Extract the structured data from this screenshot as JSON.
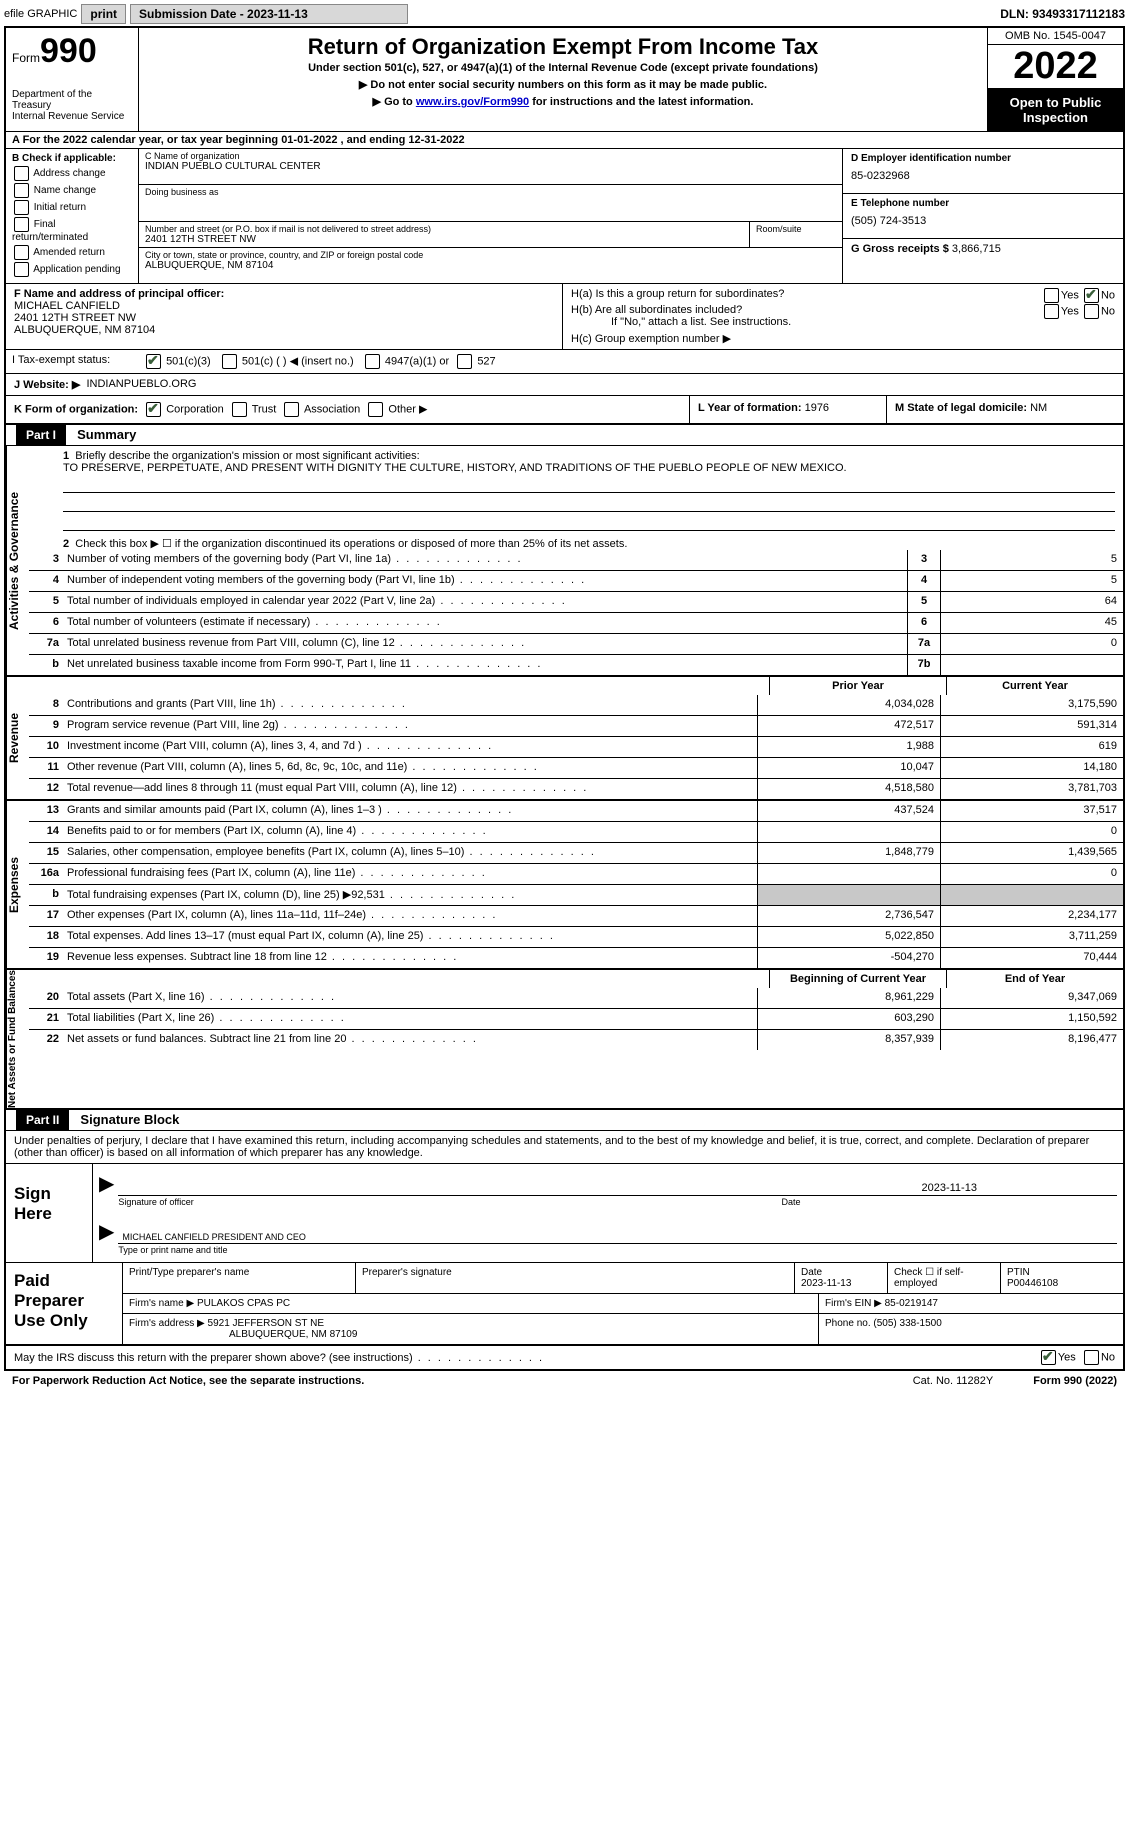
{
  "topbar": {
    "efile": "efile GRAPHIC",
    "print": "print",
    "submission": "Submission Date - 2023-11-13",
    "dln": "DLN: 93493317112183"
  },
  "header": {
    "form_label": "Form",
    "form_num": "990",
    "dept": "Department of the Treasury",
    "irs": "Internal Revenue Service",
    "title": "Return of Organization Exempt From Income Tax",
    "sub1": "Under section 501(c), 527, or 4947(a)(1) of the Internal Revenue Code (except private foundations)",
    "sub2": "▶ Do not enter social security numbers on this form as it may be made public.",
    "sub3_pre": "▶ Go to ",
    "sub3_link": "www.irs.gov/Form990",
    "sub3_post": " for instructions and the latest information.",
    "omb": "OMB No. 1545-0047",
    "year": "2022",
    "open": "Open to Public Inspection"
  },
  "row_a": "A For the 2022 calendar year, or tax year beginning 01-01-2022    , and ending 12-31-2022",
  "col_b": {
    "title": "B Check if applicable:",
    "items": [
      "Address change",
      "Name change",
      "Initial return",
      "Final return/terminated",
      "Amended return",
      "Application pending"
    ]
  },
  "col_c": {
    "name_lbl": "C Name of organization",
    "name": "INDIAN PUEBLO CULTURAL CENTER",
    "dba_lbl": "Doing business as",
    "dba": "",
    "street_lbl": "Number and street (or P.O. box if mail is not delivered to street address)",
    "street": "2401 12TH STREET NW",
    "room_lbl": "Room/suite",
    "city_lbl": "City or town, state or province, country, and ZIP or foreign postal code",
    "city": "ALBUQUERQUE, NM  87104"
  },
  "col_d": {
    "ein_lbl": "D Employer identification number",
    "ein": "85-0232968",
    "tel_lbl": "E Telephone number",
    "tel": "(505) 724-3513",
    "gross_lbl": "G Gross receipts $",
    "gross": "3,866,715"
  },
  "section_f": {
    "lbl": "F Name and address of principal officer:",
    "name": "MICHAEL CANFIELD",
    "street": "2401 12TH STREET NW",
    "city": "ALBUQUERQUE, NM  87104"
  },
  "section_h": {
    "ha": "H(a)  Is this a group return for subordinates?",
    "hb": "H(b)  Are all subordinates included?",
    "hb_note": "If \"No,\" attach a list. See instructions.",
    "hc": "H(c)  Group exemption number ▶",
    "yes": "Yes",
    "no": "No"
  },
  "row_i": {
    "lbl": "I   Tax-exempt status:",
    "o1": "501(c)(3)",
    "o2": "501(c) (  ) ◀ (insert no.)",
    "o3": "4947(a)(1) or",
    "o4": "527"
  },
  "row_j": {
    "lbl": "J   Website: ▶",
    "val": "INDIANPUEBLO.ORG"
  },
  "row_k": {
    "k1_lbl": "K Form of organization:",
    "corp": "Corporation",
    "trust": "Trust",
    "assoc": "Association",
    "other": "Other ▶",
    "k2_lbl": "L Year of formation:",
    "k2_val": "1976",
    "k3_lbl": "M State of legal domicile:",
    "k3_val": "NM"
  },
  "part1": {
    "hdr": "Part I",
    "title": "Summary",
    "q1": "Briefly describe the organization's mission or most significant activities:",
    "mission": "TO PRESERVE, PERPETUATE, AND PRESENT WITH DIGNITY THE CULTURE, HISTORY, AND TRADITIONS OF THE PUEBLO PEOPLE OF NEW MEXICO.",
    "q2": "Check this box ▶ ☐ if the organization discontinued its operations or disposed of more than 25% of its net assets.",
    "vlabel_ag": "Activities & Governance",
    "vlabel_rev": "Revenue",
    "vlabel_exp": "Expenses",
    "vlabel_na": "Net Assets or Fund Balances",
    "lines_ag": [
      {
        "n": "3",
        "d": "Number of voting members of the governing body (Part VI, line 1a)",
        "box": "3",
        "v": "5"
      },
      {
        "n": "4",
        "d": "Number of independent voting members of the governing body (Part VI, line 1b)",
        "box": "4",
        "v": "5"
      },
      {
        "n": "5",
        "d": "Total number of individuals employed in calendar year 2022 (Part V, line 2a)",
        "box": "5",
        "v": "64"
      },
      {
        "n": "6",
        "d": "Total number of volunteers (estimate if necessary)",
        "box": "6",
        "v": "45"
      },
      {
        "n": "7a",
        "d": "Total unrelated business revenue from Part VIII, column (C), line 12",
        "box": "7a",
        "v": "0"
      },
      {
        "n": "b",
        "d": "Net unrelated business taxable income from Form 990-T, Part I, line 11",
        "box": "7b",
        "v": ""
      }
    ],
    "prior_hdr": "Prior Year",
    "curr_hdr": "Current Year",
    "lines_rev": [
      {
        "n": "8",
        "d": "Contributions and grants (Part VIII, line 1h)",
        "p": "4,034,028",
        "c": "3,175,590"
      },
      {
        "n": "9",
        "d": "Program service revenue (Part VIII, line 2g)",
        "p": "472,517",
        "c": "591,314"
      },
      {
        "n": "10",
        "d": "Investment income (Part VIII, column (A), lines 3, 4, and 7d )",
        "p": "1,988",
        "c": "619"
      },
      {
        "n": "11",
        "d": "Other revenue (Part VIII, column (A), lines 5, 6d, 8c, 9c, 10c, and 11e)",
        "p": "10,047",
        "c": "14,180"
      },
      {
        "n": "12",
        "d": "Total revenue—add lines 8 through 11 (must equal Part VIII, column (A), line 12)",
        "p": "4,518,580",
        "c": "3,781,703"
      }
    ],
    "lines_exp": [
      {
        "n": "13",
        "d": "Grants and similar amounts paid (Part IX, column (A), lines 1–3 )",
        "p": "437,524",
        "c": "37,517"
      },
      {
        "n": "14",
        "d": "Benefits paid to or for members (Part IX, column (A), line 4)",
        "p": "",
        "c": "0"
      },
      {
        "n": "15",
        "d": "Salaries, other compensation, employee benefits (Part IX, column (A), lines 5–10)",
        "p": "1,848,779",
        "c": "1,439,565"
      },
      {
        "n": "16a",
        "d": "Professional fundraising fees (Part IX, column (A), line 11e)",
        "p": "",
        "c": "0"
      },
      {
        "n": "b",
        "d": "Total fundraising expenses (Part IX, column (D), line 25) ▶92,531",
        "p": "grey",
        "c": "grey"
      },
      {
        "n": "17",
        "d": "Other expenses (Part IX, column (A), lines 11a–11d, 11f–24e)",
        "p": "2,736,547",
        "c": "2,234,177"
      },
      {
        "n": "18",
        "d": "Total expenses. Add lines 13–17 (must equal Part IX, column (A), line 25)",
        "p": "5,022,850",
        "c": "3,711,259"
      },
      {
        "n": "19",
        "d": "Revenue less expenses. Subtract line 18 from line 12",
        "p": "-504,270",
        "c": "70,444"
      }
    ],
    "boy_hdr": "Beginning of Current Year",
    "eoy_hdr": "End of Year",
    "lines_na": [
      {
        "n": "20",
        "d": "Total assets (Part X, line 16)",
        "p": "8,961,229",
        "c": "9,347,069"
      },
      {
        "n": "21",
        "d": "Total liabilities (Part X, line 26)",
        "p": "603,290",
        "c": "1,150,592"
      },
      {
        "n": "22",
        "d": "Net assets or fund balances. Subtract line 21 from line 20",
        "p": "8,357,939",
        "c": "8,196,477"
      }
    ]
  },
  "part2": {
    "hdr": "Part II",
    "title": "Signature Block",
    "decl": "Under penalties of perjury, I declare that I have examined this return, including accompanying schedules and statements, and to the best of my knowledge and belief, it is true, correct, and complete. Declaration of preparer (other than officer) is based on all information of which preparer has any knowledge.",
    "sign_here": "Sign Here",
    "sig_officer": "Signature of officer",
    "sig_date": "2023-11-13",
    "date_lbl": "Date",
    "name_title": "MICHAEL CANFIELD  PRESIDENT AND CEO",
    "type_name": "Type or print name and title",
    "paid_lbl": "Paid Preparer Use Only",
    "prep_name_lbl": "Print/Type preparer's name",
    "prep_sig_lbl": "Preparer's signature",
    "prep_date_lbl": "Date",
    "prep_date": "2023-11-13",
    "check_self": "Check ☐ if self-employed",
    "ptin_lbl": "PTIN",
    "ptin": "P00446108",
    "firm_name_lbl": "Firm's name    ▶",
    "firm_name": "PULAKOS CPAS PC",
    "firm_ein_lbl": "Firm's EIN ▶",
    "firm_ein": "85-0219147",
    "firm_addr_lbl": "Firm's address ▶",
    "firm_addr1": "5921 JEFFERSON ST NE",
    "firm_addr2": "ALBUQUERQUE, NM  87109",
    "phone_lbl": "Phone no.",
    "phone": "(505) 338-1500",
    "may_irs": "May the IRS discuss this return with the preparer shown above? (see instructions)"
  },
  "footer": {
    "left": "For Paperwork Reduction Act Notice, see the separate instructions.",
    "center": "Cat. No. 11282Y",
    "right": "Form 990 (2022)"
  }
}
